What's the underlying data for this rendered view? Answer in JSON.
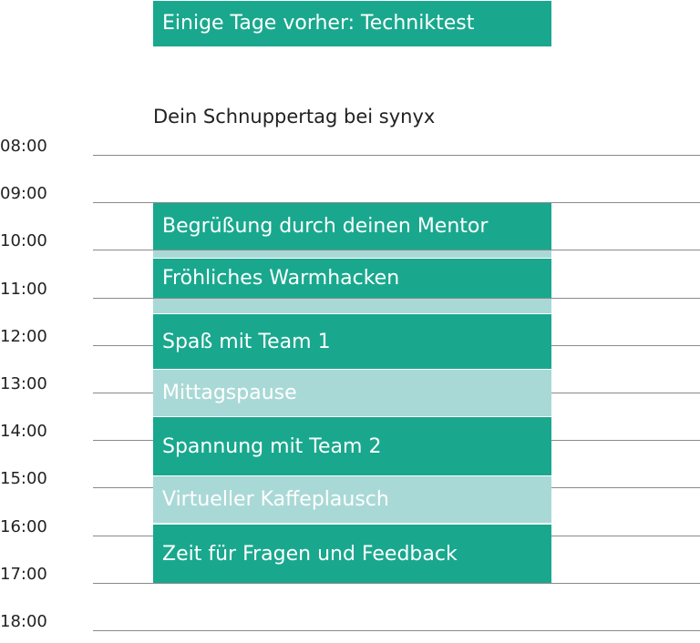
{
  "header": {
    "announcement": "Einige Tage vorher: Techniktest",
    "schedule_title": "Dein Schnuppertag bei synyx"
  },
  "time_labels": [
    "08:00",
    "09:00",
    "10:00",
    "11:00",
    "12:00",
    "13:00",
    "14:00",
    "15:00",
    "16:00",
    "17:00",
    "18:00"
  ],
  "events": [
    {
      "label": "Begrüßung durch deinen Mentor",
      "start": "09:00",
      "end": "10:00",
      "style": "primary"
    },
    {
      "label": "",
      "start": "10:00",
      "end": "10:10",
      "style": "secondary"
    },
    {
      "label": "Fröhliches Warmhacken",
      "start": "10:10",
      "end": "11:00",
      "style": "primary"
    },
    {
      "label": "",
      "start": "11:00",
      "end": "11:20",
      "style": "secondary"
    },
    {
      "label": "Spaß mit Team 1",
      "start": "11:20",
      "end": "12:30",
      "style": "primary"
    },
    {
      "label": "Mittagspause",
      "start": "12:30",
      "end": "13:30",
      "style": "secondary"
    },
    {
      "label": "Spannung mit Team 2",
      "start": "13:30",
      "end": "14:45",
      "style": "primary"
    },
    {
      "label": "Virtueller Kaffeplausch",
      "start": "14:45",
      "end": "15:45",
      "style": "secondary"
    },
    {
      "label": "Zeit für Fragen und Feedback",
      "start": "15:45",
      "end": "17:00",
      "style": "primary"
    }
  ],
  "colors": {
    "primary": "#19a88e",
    "secondary": "#a9d9d6",
    "text": "#222222",
    "grid": "#8a8a8a"
  }
}
